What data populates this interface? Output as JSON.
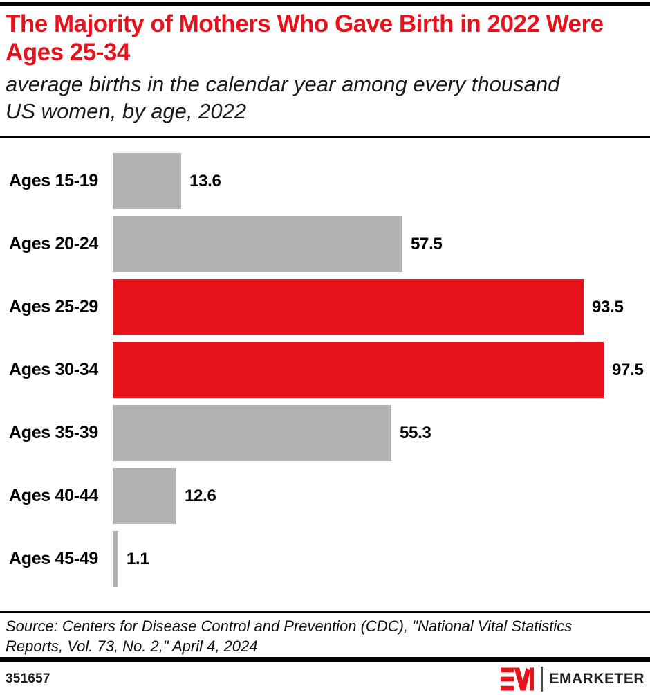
{
  "header": {
    "title": "The Majority of Mothers Who Gave Birth in 2022 Were Ages 25-34",
    "subtitle": "average births in the calendar year among every thousand US women, by age, 2022"
  },
  "chart_data": {
    "type": "bar",
    "orientation": "horizontal",
    "title": "The Majority of Mothers Who Gave Birth in 2022 Were Ages 25-34",
    "subtitle": "average births in the calendar year among every thousand US women, by age, 2022",
    "categories": [
      "Ages 15-19",
      "Ages 20-24",
      "Ages 25-29",
      "Ages 30-34",
      "Ages 35-39",
      "Ages 40-44",
      "Ages 45-49"
    ],
    "values": [
      13.6,
      57.5,
      93.5,
      97.5,
      55.3,
      12.6,
      1.1
    ],
    "value_labels": [
      "13.6",
      "57.5",
      "93.5",
      "97.5",
      "55.3",
      "12.6",
      "1.1"
    ],
    "bar_colors": [
      "#b2b2b2",
      "#b2b2b2",
      "#e8121d",
      "#e8121d",
      "#b2b2b2",
      "#b2b2b2",
      "#b2b2b2"
    ],
    "highlighted_categories": [
      "Ages 25-29",
      "Ages 30-34"
    ],
    "xlabel": "",
    "ylabel": "",
    "xlim": [
      0,
      97.5
    ],
    "grid": false,
    "legend": false,
    "value_labels_shown": true
  },
  "source": {
    "text": "Source: Centers for Disease Control and Prevention (CDC), \"National Vital Statistics Reports, Vol. 73, No. 2,\" April 4, 2024"
  },
  "footer": {
    "chart_id": "351657",
    "brand_name": "EMARKETER"
  },
  "colors": {
    "accent_red": "#e8121d",
    "bar_gray": "#b2b2b2",
    "bar_black": "#000000"
  }
}
